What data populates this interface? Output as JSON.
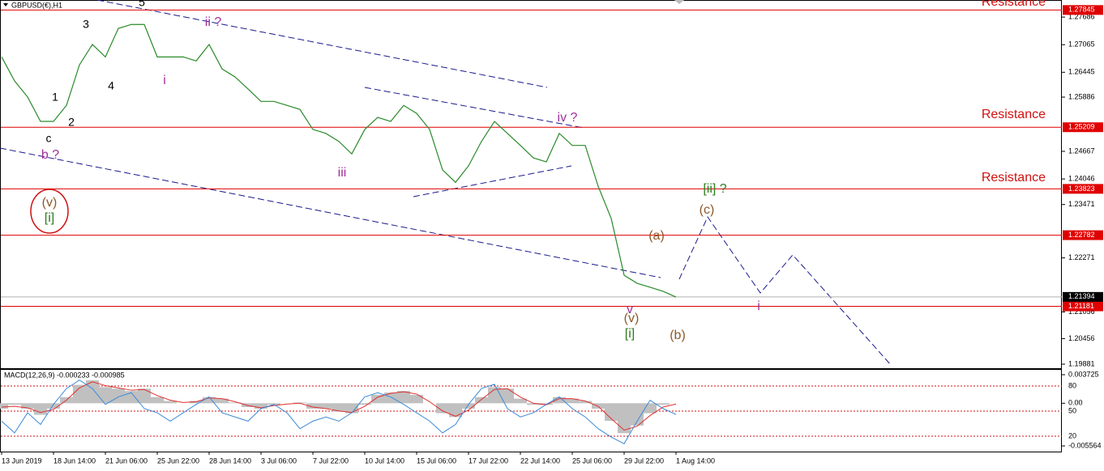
{
  "chart_data": [
    {
      "type": "line",
      "title": "GBPUSD(€),H1",
      "color": "#2a8a2a",
      "categories": [
        "13 Jun 2019",
        null,
        null,
        null,
        "18 Jun 14:00",
        null,
        null,
        null,
        "21 Jun 06:00",
        null,
        null,
        null,
        "25 Jun 22:00",
        null,
        null,
        null,
        "28 Jun 14:00",
        null,
        null,
        null,
        "3 Jul 06:00",
        null,
        null,
        null,
        "7 Jul 22:00",
        null,
        null,
        null,
        "10 Jul 14:00",
        null,
        null,
        null,
        "15 Jul 06:00",
        null,
        null,
        null,
        "17 Jul 22:00",
        null,
        null,
        null,
        "22 Jul 14:00",
        null,
        null,
        null,
        "25 Jul 06:00",
        null,
        null,
        null,
        "29 Jul 22:00",
        null,
        null,
        null,
        "1 Aug 14:00"
      ],
      "values": [
        1.2679,
        1.2625,
        1.2589,
        1.2534,
        1.2534,
        1.257,
        1.2661,
        1.2707,
        1.2679,
        1.2743,
        1.2752,
        1.2752,
        1.2679,
        1.2679,
        1.2679,
        1.267,
        1.2707,
        1.2652,
        1.2634,
        1.2607,
        1.2579,
        1.2579,
        1.257,
        1.2561,
        1.2516,
        1.2507,
        1.2489,
        1.2461,
        1.2516,
        1.2543,
        1.2534,
        1.257,
        1.2552,
        1.2516,
        1.2425,
        1.2397,
        1.2434,
        1.2489,
        1.2534,
        1.2507,
        1.248,
        1.2452,
        1.2443,
        1.2507,
        1.248,
        1.248,
        1.2388,
        1.2316,
        1.2188,
        1.217,
        1.2161,
        1.2152,
        1.2139
      ],
      "ylim": [
        1.1979,
        1.2807
      ],
      "yticks": [
        1.27686,
        1.27065,
        1.26445,
        1.25886,
        1.24667,
        1.24046,
        1.23471,
        1.22271,
        1.21056,
        1.20456,
        1.19881
      ],
      "levels": [
        1.27845,
        1.25209,
        1.23823,
        1.22782,
        1.21181
      ],
      "level_color": "#e00000",
      "current_price": 1.21394,
      "resistance_labels": [
        "Resistance",
        "Resistance",
        "Resistance"
      ],
      "annotations": [
        {
          "text": "5",
          "color": "#000000"
        },
        {
          "text": "3",
          "color": "#000000"
        },
        {
          "text": "4",
          "color": "#000000"
        },
        {
          "text": "1",
          "color": "#000000"
        },
        {
          "text": "2",
          "color": "#000000"
        },
        {
          "text": "c",
          "color": "#000000"
        },
        {
          "text": "b ?",
          "color": "#a0309a"
        },
        {
          "text": "i",
          "color": "#a0309a"
        },
        {
          "text": "ii ?",
          "color": "#a0309a"
        },
        {
          "text": "iii",
          "color": "#a0309a"
        },
        {
          "text": "iv ?",
          "color": "#a0309a"
        },
        {
          "text": "v",
          "color": "#a0309a"
        },
        {
          "text": "(v)",
          "color": "#8b5a2b"
        },
        {
          "text": "[i]",
          "color": "#2e7d1e"
        },
        {
          "text": "(a)",
          "color": "#8b5a2b"
        },
        {
          "text": "(b)",
          "color": "#8b5a2b"
        },
        {
          "text": "(c)",
          "color": "#8b5a2b"
        },
        {
          "text": "[ii] ?",
          "color": "#2e7d1e"
        },
        {
          "text": "i",
          "color": "#a0309a"
        },
        {
          "text": "(v)",
          "color": "#8b5a2b"
        },
        {
          "text": "[i]",
          "color": "#2e7d1e"
        }
      ]
    },
    {
      "type": "line",
      "title": "MACD(12,26,9) -0.000233 -0.000985",
      "ylim": [
        -0.006303,
        0.004464
      ],
      "yticks": [
        0.003725,
        {
          "value": 0,
          "label": "0.00"
        },
        -0.005564
      ],
      "y2lim": [
        1.6,
        100.3
      ],
      "y2ticks": [
        80,
        50,
        20
      ],
      "series": [
        {
          "style": "histogram",
          "color": "#c0c0c0",
          "values": [
            -0.0007,
            -0.0002,
            -0.0007,
            -0.0015,
            -0.0007,
            0.0008,
            0.0024,
            0.003,
            0.0021,
            0.0019,
            0.0016,
            0.0019,
            0.0008,
            0.0003,
            0,
            0.0003,
            0.0008,
            0.0006,
            0.0001,
            -0.0005,
            -0.0007,
            -0.0002,
            0,
            0.0001,
            -0.0007,
            -0.0007,
            -0.0011,
            -0.0013,
            -0.0002,
            0.0011,
            0.0014,
            0.0016,
            0.0011,
            0,
            -0.0013,
            -0.0018,
            -0.0007,
            0.0008,
            0.0021,
            0.0019,
            0.0006,
            -0.0002,
            -0.0002,
            0.0008,
            0.0006,
            0.0003,
            -0.0007,
            -0.0023,
            -0.0039,
            -0.0029,
            -0.0013,
            -0.0002,
            0
          ]
        },
        {
          "style": "line",
          "color": "#e03030",
          "values": [
            -0.0005,
            -0.0004,
            -0.0006,
            -0.0012,
            -0.0008,
            0.0004,
            0.002,
            0.0028,
            0.0023,
            0.002,
            0.0017,
            0.0018,
            0.001,
            0.0004,
            0.0001,
            0.0002,
            0.0007,
            0.0006,
            0.0002,
            -0.0003,
            -0.0006,
            -0.0003,
            -0.0001,
            0,
            -0.0005,
            -0.0007,
            -0.001,
            -0.0012,
            -0.0004,
            0.0008,
            0.0013,
            0.0015,
            0.0012,
            0.0002,
            -0.001,
            -0.0017,
            -0.0009,
            0.0005,
            0.0018,
            0.0019,
            0.0008,
            0,
            -0.0002,
            0.0006,
            0.0006,
            0.0003,
            -0.0004,
            -0.002,
            -0.0035,
            -0.003,
            -0.0016,
            -0.0005,
            -0.0001
          ]
        },
        {
          "style": "line",
          "axis": "y2",
          "color": "#3a8ad8",
          "values": [
            38,
            24,
            48,
            34,
            58,
            77,
            87,
            77,
            58,
            67,
            72,
            53,
            48,
            38,
            48,
            58,
            67,
            48,
            43,
            38,
            53,
            58,
            48,
            29,
            38,
            43,
            38,
            48,
            67,
            72,
            67,
            58,
            48,
            38,
            24,
            34,
            58,
            77,
            82,
            53,
            43,
            48,
            58,
            67,
            53,
            43,
            29,
            19,
            11,
            38,
            63,
            53,
            46
          ]
        }
      ]
    }
  ]
}
